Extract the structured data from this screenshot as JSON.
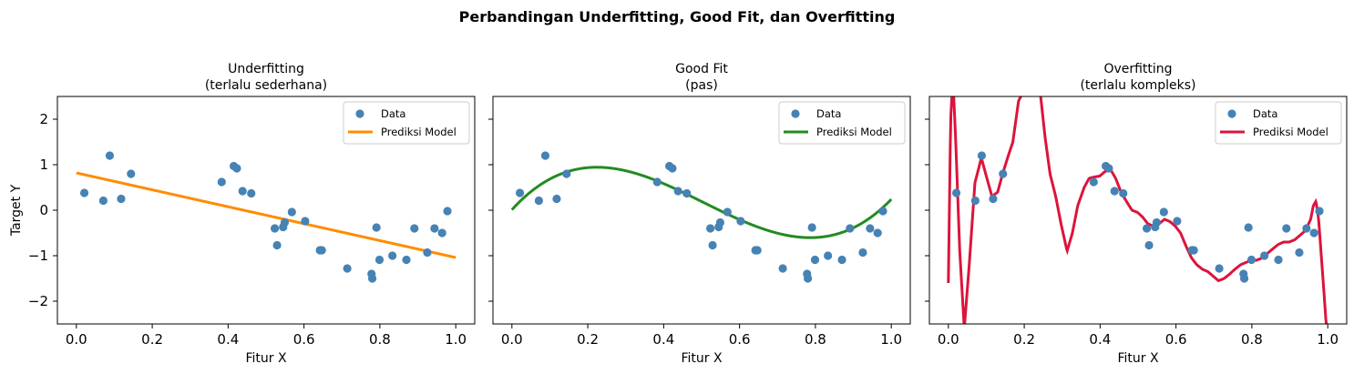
{
  "suptitle": "Perbandingan Underfitting, Good Fit, dan Overfitting",
  "colors": {
    "data_points": "#4682b4",
    "underfit": "#ff8c00",
    "goodfit": "#228b22",
    "overfit": "#dc143c"
  },
  "chart_data": [
    {
      "type": "scatter",
      "title_line1": "Underfitting",
      "title_line2": "(terlalu sederhana)",
      "xlabel": "Fitur X",
      "ylabel": "Target Y",
      "xlim": [
        -0.05,
        1.05
      ],
      "ylim": [
        -2.5,
        2.5
      ],
      "xticks": [
        0.0,
        0.2,
        0.4,
        0.6,
        0.8,
        1.0
      ],
      "xtick_labels": [
        "0.0",
        "0.2",
        "0.4",
        "0.6",
        "0.8",
        "1.0"
      ],
      "yticks": [
        2,
        1,
        0,
        -1,
        -2
      ],
      "ytick_labels": [
        "2",
        "1",
        "0",
        "−1",
        "−2"
      ],
      "legend": [
        "Data",
        "Prediksi Model"
      ],
      "legend_position": "upper right",
      "line_color": "#ff8c00",
      "model": "linear",
      "series": [
        {
          "name": "Prediksi Model",
          "coefficients": [
            0.82,
            -1.86
          ]
        }
      ]
    },
    {
      "type": "scatter",
      "title_line1": "Good Fit",
      "title_line2": "(pas)",
      "xlabel": "Fitur X",
      "ylabel": "",
      "xlim": [
        -0.05,
        1.05
      ],
      "ylim": [
        -2.5,
        2.5
      ],
      "xticks": [
        0.0,
        0.2,
        0.4,
        0.6,
        0.8,
        1.0
      ],
      "xtick_labels": [
        "0.0",
        "0.2",
        "0.4",
        "0.6",
        "0.8",
        "1.0"
      ],
      "yticks": [
        2,
        1,
        0,
        -1,
        -2
      ],
      "ytick_labels": [
        "",
        "",
        "",
        "",
        ""
      ],
      "legend": [
        "Data",
        "Prediksi Model"
      ],
      "legend_position": "upper right",
      "line_color": "#228b22",
      "model": "cubic",
      "series": [
        {
          "name": "Prediksi Model",
          "coefficients": [
            0.01,
            9.21,
            -26.41,
            17.43
          ]
        }
      ]
    },
    {
      "type": "scatter",
      "title_line1": "Overfitting",
      "title_line2": "(terlalu kompleks)",
      "xlabel": "Fitur X",
      "ylabel": "",
      "xlim": [
        -0.05,
        1.05
      ],
      "ylim": [
        -2.5,
        2.5
      ],
      "xticks": [
        0.0,
        0.2,
        0.4,
        0.6,
        0.8,
        1.0
      ],
      "xtick_labels": [
        "0.0",
        "0.2",
        "0.4",
        "0.6",
        "0.8",
        "1.0"
      ],
      "yticks": [
        2,
        1,
        0,
        -1,
        -2
      ],
      "ytick_labels": [
        "",
        "",
        "",
        "",
        ""
      ],
      "legend": [
        "Data",
        "Prediksi Model"
      ],
      "legend_position": "upper right",
      "line_color": "#dc143c",
      "model": "interpolated",
      "series": [
        {
          "name": "Prediksi Model",
          "x": [
            0.0,
            0.006,
            0.012,
            0.019,
            0.03,
            0.042,
            0.055,
            0.07,
            0.087,
            0.1,
            0.115,
            0.13,
            0.143,
            0.158,
            0.17,
            0.185,
            0.197,
            0.213,
            0.222,
            0.242,
            0.255,
            0.268,
            0.283,
            0.297,
            0.313,
            0.327,
            0.341,
            0.358,
            0.371,
            0.384,
            0.399,
            0.413,
            0.427,
            0.441,
            0.455,
            0.469,
            0.484,
            0.499,
            0.512,
            0.526,
            0.541,
            0.555,
            0.57,
            0.584,
            0.598,
            0.612,
            0.627,
            0.641,
            0.655,
            0.67,
            0.684,
            0.698,
            0.712,
            0.727,
            0.742,
            0.755,
            0.77,
            0.784,
            0.798,
            0.812,
            0.827,
            0.841,
            0.855,
            0.87,
            0.884,
            0.898,
            0.913,
            0.927,
            0.941,
            0.955,
            0.962,
            0.969,
            0.976,
            0.983,
            0.99,
            0.995,
            0.999
          ],
          "y": [
            -1.6,
            2.0,
            2.9,
            1.6,
            -0.9,
            -2.6,
            -1.2,
            0.6,
            1.15,
            0.75,
            0.3,
            0.4,
            0.8,
            1.2,
            1.5,
            2.4,
            2.6,
            2.6,
            2.6,
            2.6,
            1.6,
            0.8,
            0.3,
            -0.3,
            -0.9,
            -0.5,
            0.1,
            0.5,
            0.7,
            0.73,
            0.75,
            0.85,
            0.9,
            0.7,
            0.4,
            0.2,
            0.0,
            -0.05,
            -0.15,
            -0.3,
            -0.35,
            -0.3,
            -0.2,
            -0.25,
            -0.35,
            -0.5,
            -0.8,
            -1.05,
            -1.2,
            -1.3,
            -1.35,
            -1.45,
            -1.55,
            -1.5,
            -1.4,
            -1.3,
            -1.2,
            -1.15,
            -1.1,
            -1.1,
            -1.05,
            -0.95,
            -0.85,
            -0.75,
            -0.7,
            -0.7,
            -0.65,
            -0.55,
            -0.45,
            -0.2,
            0.1,
            0.2,
            -0.2,
            -1.0,
            -1.8,
            -2.4,
            -2.7
          ]
        }
      ]
    }
  ],
  "shared_points": {
    "x": [
      0.021,
      0.071,
      0.088,
      0.118,
      0.144,
      0.383,
      0.415,
      0.423,
      0.438,
      0.461,
      0.523,
      0.529,
      0.545,
      0.549,
      0.568,
      0.603,
      0.642,
      0.647,
      0.714,
      0.778,
      0.78,
      0.791,
      0.799,
      0.833,
      0.87,
      0.891,
      0.925,
      0.944,
      0.964,
      0.978
    ],
    "y": [
      0.38,
      0.21,
      1.2,
      0.25,
      0.8,
      0.62,
      0.97,
      0.92,
      0.42,
      0.37,
      -0.4,
      -0.77,
      -0.37,
      -0.27,
      -0.04,
      -0.24,
      -0.88,
      -0.88,
      -1.28,
      -1.4,
      -1.5,
      -0.38,
      -1.09,
      -1.0,
      -1.09,
      -0.4,
      -0.93,
      -0.4,
      -0.5,
      -0.02
    ]
  }
}
